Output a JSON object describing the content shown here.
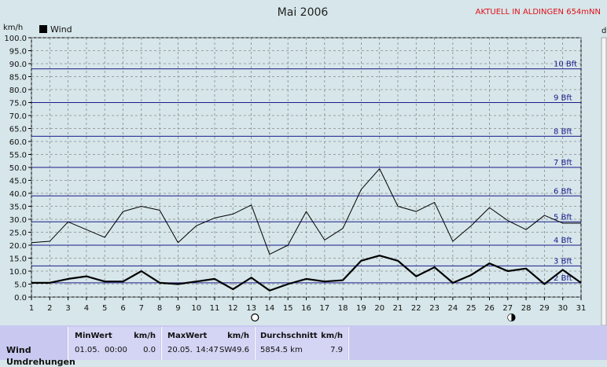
{
  "header": {
    "title": "Mai 2006",
    "brand": "AKTUELL IN ALDINGEN 654mNN",
    "y_unit": "km/h",
    "right_unit": "d"
  },
  "chart_data": {
    "type": "line",
    "x": [
      1,
      2,
      3,
      4,
      5,
      6,
      7,
      8,
      9,
      10,
      11,
      12,
      13,
      14,
      15,
      16,
      17,
      18,
      19,
      20,
      21,
      22,
      23,
      24,
      25,
      26,
      27,
      28,
      29,
      30,
      31
    ],
    "xlim": [
      1,
      31
    ],
    "ylim": [
      0,
      100
    ],
    "y_ticks": [
      "0.0",
      "5.0",
      "10.0",
      "15.0",
      "20.0",
      "25.0",
      "30.0",
      "35.0",
      "40.0",
      "45.0",
      "50.0",
      "55.0",
      "60.0",
      "65.0",
      "70.0",
      "75.0",
      "80.0",
      "85.0",
      "90.0",
      "95.0",
      "100.0"
    ],
    "x_ticks": [
      "1",
      "2",
      "3",
      "4",
      "5",
      "6",
      "7",
      "8",
      "9",
      "10",
      "11",
      "12",
      "13",
      "14",
      "15",
      "16",
      "17",
      "18",
      "19",
      "20",
      "21",
      "22",
      "23",
      "24",
      "25",
      "26",
      "27",
      "28",
      "29",
      "30",
      "31"
    ],
    "grid": true,
    "legend": "top-left",
    "series": [
      {
        "name": "Wind",
        "role": "mean",
        "color": "#000000",
        "values": [
          5.5,
          5.5,
          7,
          8,
          6,
          6,
          10,
          5.5,
          5,
          6,
          7,
          3,
          7.5,
          2.5,
          5,
          7,
          6,
          6.5,
          14,
          16,
          14,
          8,
          11.5,
          5.5,
          8.5,
          13,
          10,
          11,
          5,
          10.5,
          5.5
        ]
      },
      {
        "role": "gust",
        "color": "#000000",
        "values": [
          21,
          21.5,
          29,
          26,
          23,
          33,
          35,
          33.5,
          21,
          27.5,
          30.5,
          32,
          35.5,
          16.5,
          20,
          33,
          22,
          26.5,
          41.5,
          49.5,
          35,
          33,
          36.5,
          21.5,
          27.5,
          34.5,
          29.5,
          26,
          31.5,
          28.5,
          28.5
        ]
      }
    ],
    "beaufort": [
      {
        "label": "2 Bft",
        "value": 5.5
      },
      {
        "label": "3 Bft",
        "value": 12
      },
      {
        "label": "4 Bft",
        "value": 20
      },
      {
        "label": "5 Bft",
        "value": 29
      },
      {
        "label": "6 Bft",
        "value": 39
      },
      {
        "label": "7 Bft",
        "value": 50
      },
      {
        "label": "8 Bft",
        "value": 62
      },
      {
        "label": "9 Bft",
        "value": 75
      },
      {
        "label": "10 Bft",
        "value": 88
      }
    ],
    "moon_phases": [
      {
        "day": 13.2,
        "phase": "full"
      },
      {
        "day": 27.2,
        "phase": "new"
      }
    ]
  },
  "stats": {
    "row_label": "Wind",
    "row_label_2": "Umdrehungen",
    "min": {
      "header": "MinWert",
      "unit": "km/h",
      "date": "01.05.",
      "time": "00:00",
      "value": "0.0"
    },
    "max": {
      "header": "MaxWert",
      "unit": "km/h",
      "date": "20.05.",
      "time": "14:47",
      "dir": "SW",
      "value": "49.6"
    },
    "avg": {
      "header": "Durchschnitt",
      "unit": "km/h",
      "distance": "5854.5 km",
      "value": "7.9"
    }
  }
}
